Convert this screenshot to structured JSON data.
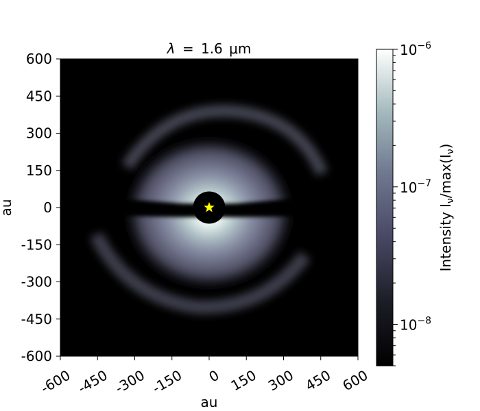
{
  "chart_data": {
    "type": "heatmap",
    "title": "λ = 1.6 μm",
    "title_parts": {
      "lambda": "λ",
      "equals": "=",
      "value": "1.6",
      "unit": "μm"
    },
    "xlabel": "au",
    "ylabel": "au",
    "xlim": [
      -600,
      600
    ],
    "ylim": [
      -600,
      600
    ],
    "xticks": [
      -600,
      -450,
      -300,
      -150,
      0,
      150,
      300,
      450,
      600
    ],
    "yticks": [
      -600,
      -450,
      -300,
      -150,
      0,
      150,
      300,
      450,
      600
    ],
    "grid": false,
    "colormap": "bone",
    "colorbar": {
      "label": "Intensity Iν/max(Iν)",
      "label_parts": {
        "prefix": "Intensity I",
        "sub1": "ν",
        "mid": "/max(I",
        "sub2": "ν",
        "suffix": ")"
      },
      "scale": "log",
      "range": [
        5e-09,
        1e-06
      ],
      "major_ticks": [
        {
          "value": 1e-08,
          "base": "10",
          "exponent": "−8"
        },
        {
          "value": 1e-07,
          "base": "10",
          "exponent": "−7"
        },
        {
          "value": 1e-06,
          "base": "10",
          "exponent": "−6"
        }
      ]
    },
    "features": {
      "star_marker": {
        "x": 0,
        "y": 0,
        "color": "#ffff00",
        "shape": "star"
      },
      "inner_mask_radius_au": 65,
      "disk_outer_radius_au": 450,
      "midplane_dark_lane": true
    }
  }
}
